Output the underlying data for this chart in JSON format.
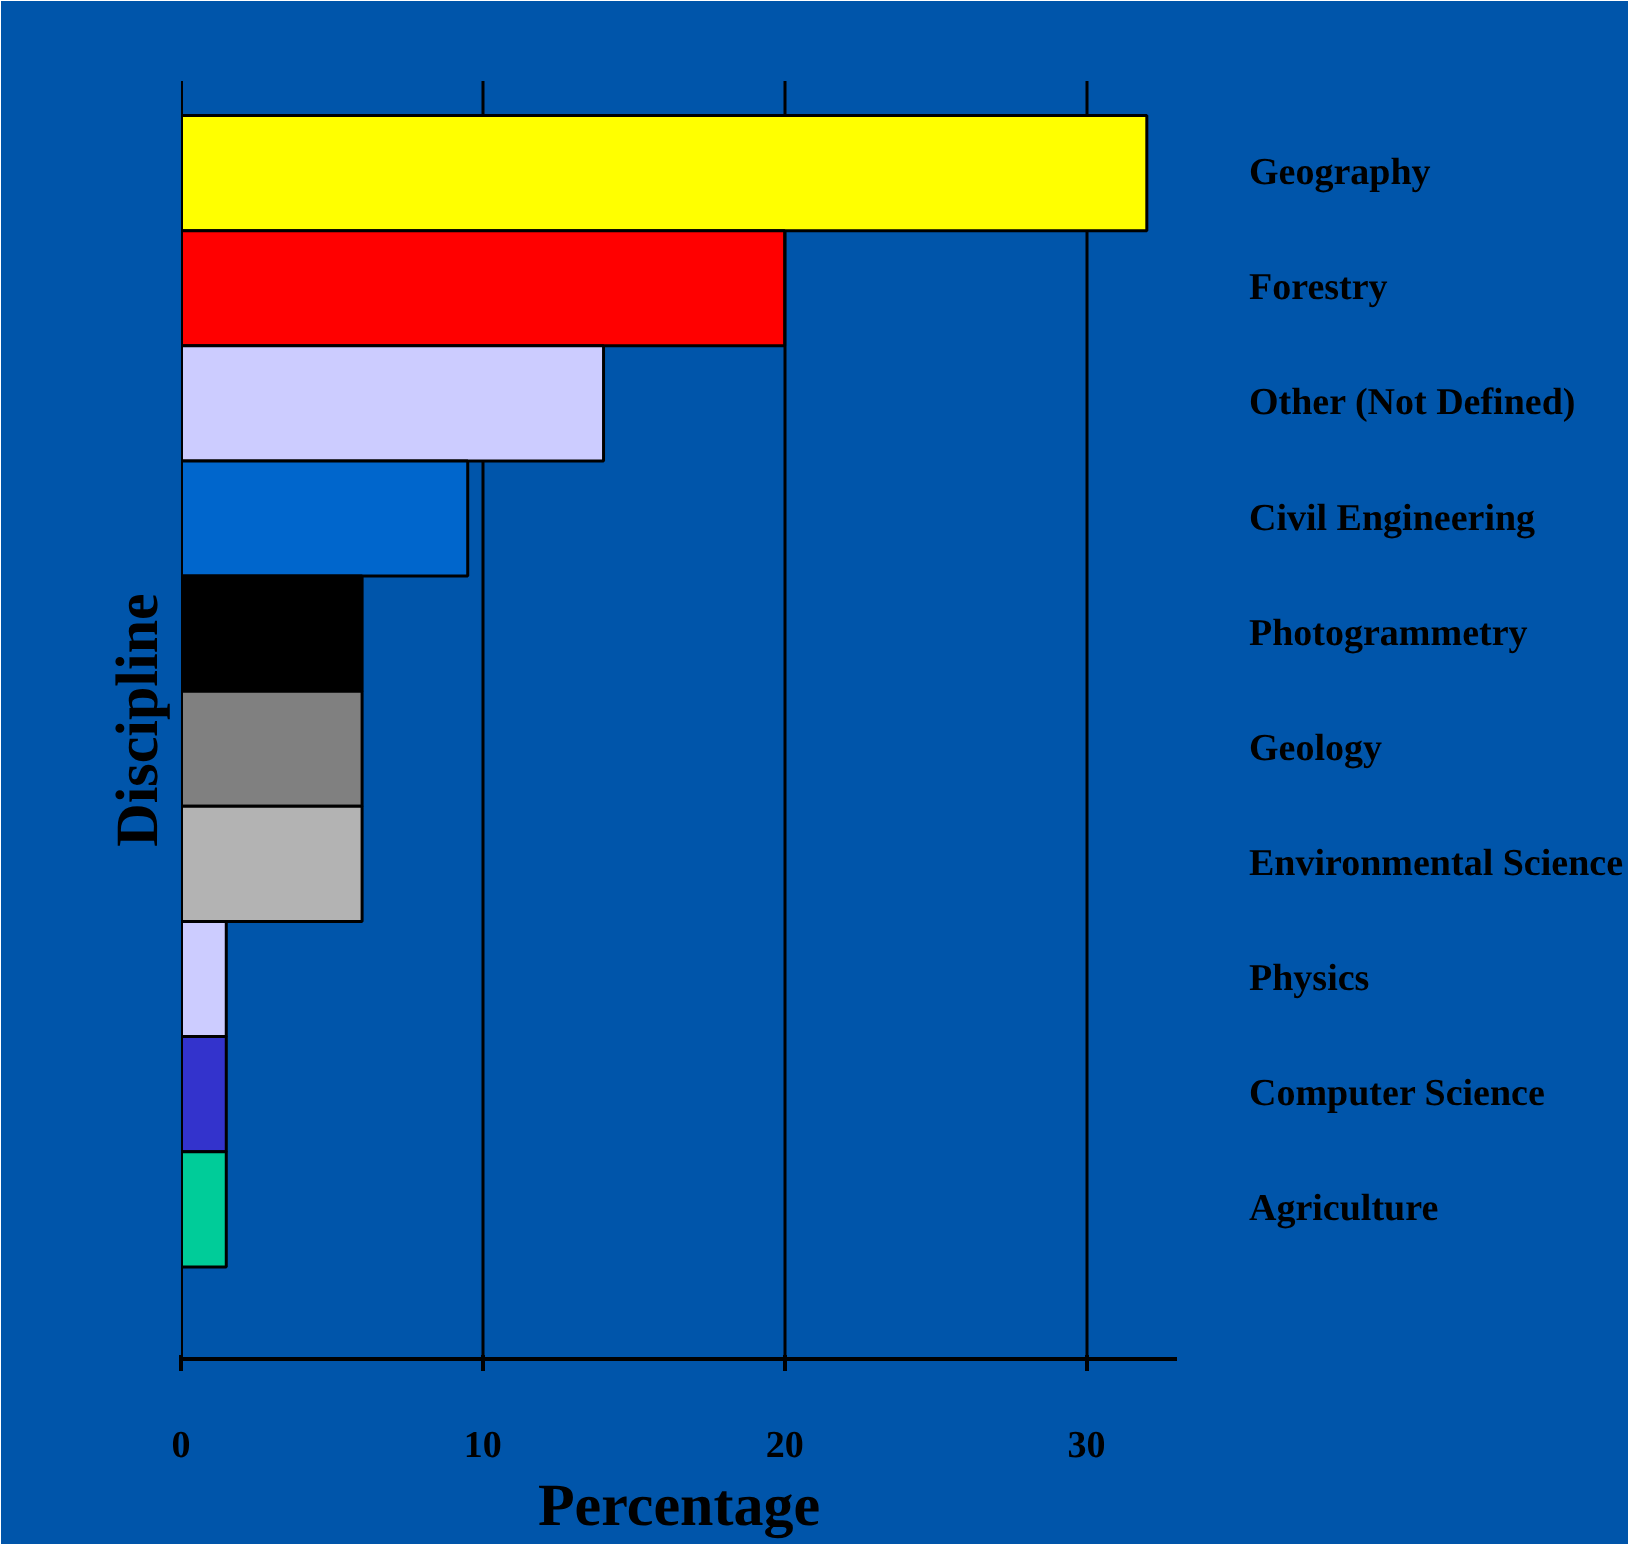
{
  "chart_data": {
    "type": "bar",
    "orientation": "horizontal",
    "xlabel": "Percentage",
    "ylabel": "Discipline",
    "categories": [
      "Geography",
      "Forestry",
      "Other (Not Defined)",
      "Civil Engineering",
      "Photogrammetry",
      "Geology",
      "Environmental Science",
      "Physics",
      "Computer Science",
      "Agriculture"
    ],
    "values": [
      32,
      20,
      14,
      9.5,
      6,
      6,
      6,
      1.5,
      1.5,
      1.5
    ],
    "colors": [
      "#ffff00",
      "#ff0000",
      "#ccccff",
      "#0066cc",
      "#000000",
      "#808080",
      "#b3b3b3",
      "#ccccff",
      "#3333cc",
      "#00cc99"
    ],
    "xlim": [
      0,
      33
    ],
    "xticks": [
      0,
      10,
      20,
      30
    ],
    "grid": "x"
  }
}
